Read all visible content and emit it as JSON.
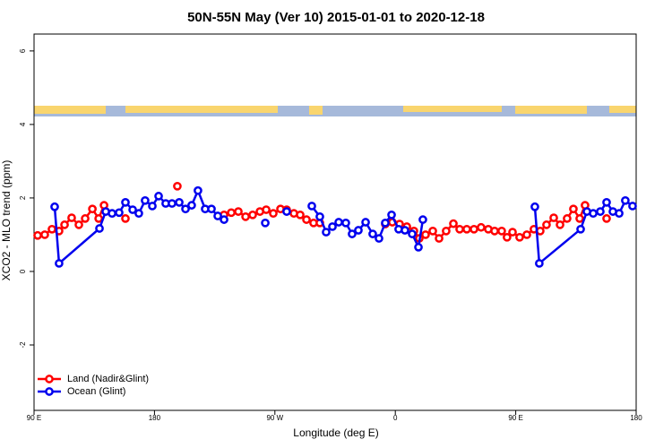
{
  "chart_data": {
    "type": "line",
    "title": "50N-55N May (Ver 10)   2015-01-01 to 2020-12-18",
    "x_label": "Longitude (deg E)",
    "y_label": "XCO2 - MLO trend (ppm)",
    "xlim": [
      90,
      540
    ],
    "ylim": [
      -3.78,
      6.46
    ],
    "xticks": [
      {
        "value": 90,
        "label": "90 E"
      },
      180,
      {
        "value": 270,
        "label": "90 W"
      },
      {
        "value": 360,
        "label": "0"
      },
      {
        "value": 450,
        "label": "90 E"
      },
      {
        "value": 540,
        "label": "180"
      }
    ],
    "yticks": [
      -2,
      0,
      2,
      4,
      6
    ],
    "legend": "bottom-left",
    "series": [
      {
        "name": "Land (Nadir&Glint)",
        "color": "#ff0000",
        "x": [
          92.7,
          98.0,
          103.4,
          108.7,
          112.8,
          118.1,
          123.5,
          128.2,
          133.6,
          138.3,
          142.3,
          null,
          158.3,
          null,
          197.1,
          null,
          232.0,
          237.4,
          242.7,
          248.1,
          253.4,
          258.8,
          263.5,
          268.8,
          274.2,
          278.8,
          284.2,
          288.9,
          293.6,
          298.9,
          303.6,
          null,
          352.5,
          357.8,
          363.2,
          368.6,
          373.9,
          377.9,
          382.6,
          388.0,
          392.7,
          398.0,
          403.4,
          408.1,
          413.4,
          418.8,
          424.1,
          429.5,
          434.2,
          439.5,
          443.5,
          447.6,
          452.9,
          458.3,
          463.6,
          468.3,
          473.0,
          478.4,
          483.1,
          488.4,
          493.1,
          497.8,
          501.8,
          null,
          517.9
        ],
        "values": [
          0.98,
          1.0,
          1.15,
          1.1,
          1.27,
          1.46,
          1.27,
          1.44,
          1.7,
          1.44,
          1.8,
          null,
          1.44,
          null,
          2.32,
          null,
          1.54,
          1.6,
          1.63,
          1.49,
          1.54,
          1.63,
          1.68,
          1.58,
          1.7,
          1.68,
          1.58,
          1.54,
          1.41,
          1.32,
          1.32,
          null,
          1.29,
          1.34,
          1.29,
          1.22,
          1.1,
          0.9,
          1.0,
          1.1,
          0.9,
          1.1,
          1.3,
          1.15,
          1.15,
          1.15,
          1.2,
          1.15,
          1.1,
          1.1,
          0.93,
          1.07,
          0.93,
          1.0,
          1.15,
          1.1,
          1.27,
          1.46,
          1.27,
          1.44,
          1.7,
          1.44,
          1.8,
          null,
          1.44
        ]
      },
      {
        "name": "Ocean (Glint)",
        "color": "#0000ee",
        "x": [
          105.4,
          108.7,
          138.9,
          143.6,
          148.3,
          153.6,
          158.3,
          163.7,
          168.3,
          173.0,
          178.4,
          183.1,
          188.4,
          193.1,
          198.5,
          203.2,
          207.8,
          212.5,
          217.9,
          222.6,
          227.3,
          232.0,
          null,
          262.8,
          null,
          278.8,
          null,
          297.6,
          303.6,
          308.3,
          313.0,
          317.7,
          323.0,
          327.7,
          332.4,
          337.8,
          343.1,
          347.8,
          352.5,
          357.2,
          362.5,
          367.2,
          372.6,
          377.3,
          380.6,
          null,
          464.3,
          467.6,
          498.5,
          503.2,
          507.9,
          513.2,
          517.9,
          522.6,
          527.3,
          531.9,
          537.3
        ],
        "values": [
          1.76,
          0.22,
          1.17,
          1.63,
          1.58,
          1.6,
          1.88,
          1.68,
          1.58,
          1.93,
          1.78,
          2.05,
          1.85,
          1.85,
          1.88,
          1.7,
          1.8,
          2.2,
          1.7,
          1.7,
          1.51,
          1.41,
          null,
          1.32,
          null,
          1.63,
          null,
          1.78,
          1.49,
          1.07,
          1.22,
          1.34,
          1.32,
          1.02,
          1.12,
          1.34,
          1.02,
          0.9,
          1.32,
          1.54,
          1.15,
          1.12,
          1.02,
          0.66,
          1.41,
          null,
          1.76,
          0.22,
          1.15,
          1.63,
          1.58,
          1.63,
          1.88,
          1.63,
          1.58,
          1.93,
          1.78
        ]
      }
    ]
  }
}
